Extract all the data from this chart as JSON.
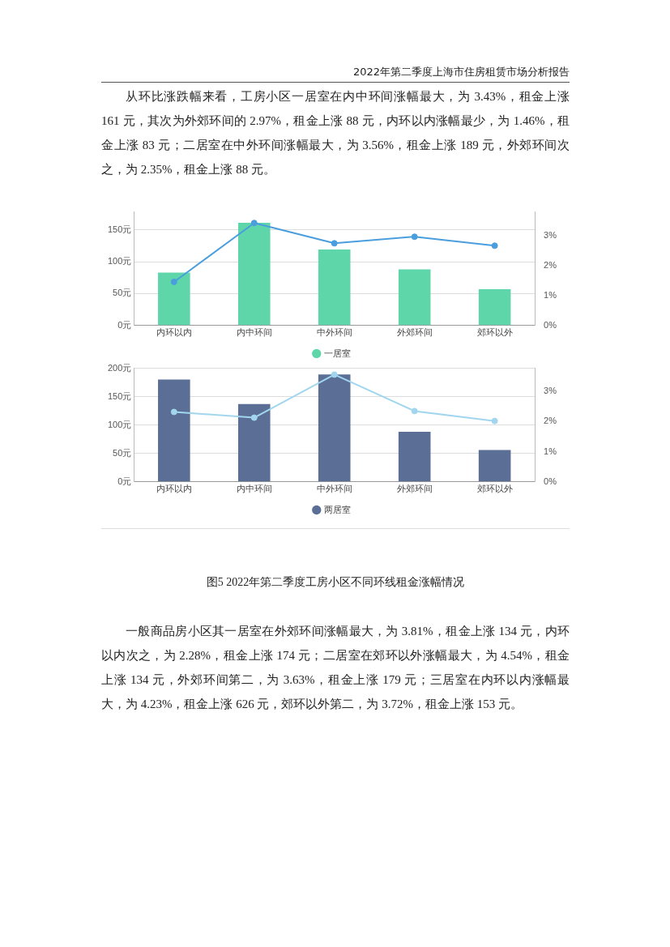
{
  "chart_data": [
    {
      "type": "bar",
      "annotations": [
        "2022年第二季度上海市住房租赁市场分析报告",
        "从环比涨跌幅来看，工房小区一居室在内中环间涨幅最大，为 3.43%，租金上涨 161 元，其次为外郊环间的 2.97%，租金上涨 88 元，内环以内涨幅最少，为 1.46%，租金上涨 83 元；二居室在中外环间涨幅最大，为 3.56%，租金上涨 189 元，外郊环间次之，为 2.35%，租金上涨 88 元。"
      ],
      "categories": [
        "内环以内",
        "内中环间",
        "中外环间",
        "外郊环间",
        "郊环以外"
      ],
      "series": [
        {
          "name": "一居室",
          "color": "#5fd6a9",
          "values": [
            83,
            161,
            119,
            88,
            57
          ]
        },
        {
          "type": "line",
          "axis": "y2",
          "color": "#4a9ede",
          "values": [
            1.46,
            3.43,
            2.75,
            2.97,
            2.67
          ]
        }
      ],
      "ylim": [
        0,
        178
      ],
      "yticks": [
        {
          "value": 0,
          "label": "0元"
        },
        {
          "value": 50,
          "label": "50元"
        },
        {
          "value": 100,
          "label": "100元"
        },
        {
          "value": 150,
          "label": "150元"
        }
      ],
      "y2lim": [
        0,
        3.8
      ],
      "y2ticks": [
        {
          "value": 0,
          "label": "0%"
        },
        {
          "value": 1,
          "label": "1%"
        },
        {
          "value": 2,
          "label": "2%"
        },
        {
          "value": 3,
          "label": "3%"
        }
      ],
      "grid": "y",
      "legend": "bottom",
      "marker": "circle"
    },
    {
      "type": "bar",
      "annotations": [
        "图5 2022年第二季度工房小区不同环线租金涨幅情况",
        "一般商品房小区其一居室在外郊环间涨幅最大，为 3.81%，租金上涨 134 元，内环以内次之，为 2.28%，租金上涨 174 元；二居室在郊环以外涨幅最大，为 4.54%，租金上涨 134 元，外郊环间第二，为 3.63%，租金上涨 179 元；三居室在内环以内涨幅最大，为 4.23%，租金上涨 626 元，郊环以外第二，为 3.72%，租金上涨 153 元。"
      ],
      "categories": [
        "内环以内",
        "内中环间",
        "中外环间",
        "外郊环间",
        "郊环以外"
      ],
      "series": [
        {
          "name": "两居室",
          "color": "#5a6e96",
          "values": [
            180,
            137,
            189,
            88,
            56
          ]
        },
        {
          "type": "line",
          "axis": "y2",
          "color": "#a2d6ee",
          "values": [
            2.32,
            2.13,
            3.56,
            2.35,
            2.02
          ]
        }
      ],
      "ylim": [
        0,
        200
      ],
      "yticks": [
        {
          "value": 0,
          "label": "0元"
        },
        {
          "value": 50,
          "label": "50元"
        },
        {
          "value": 100,
          "label": "100元"
        },
        {
          "value": 150,
          "label": "150元"
        },
        {
          "value": 200,
          "label": "200元"
        }
      ],
      "y2lim": [
        0,
        3.77
      ],
      "y2ticks": [
        {
          "value": 0,
          "label": "0%"
        },
        {
          "value": 1,
          "label": "1%"
        },
        {
          "value": 2,
          "label": "2%"
        },
        {
          "value": 3,
          "label": "3%"
        }
      ],
      "grid": "y",
      "legend": "bottom",
      "marker": "circle"
    }
  ]
}
